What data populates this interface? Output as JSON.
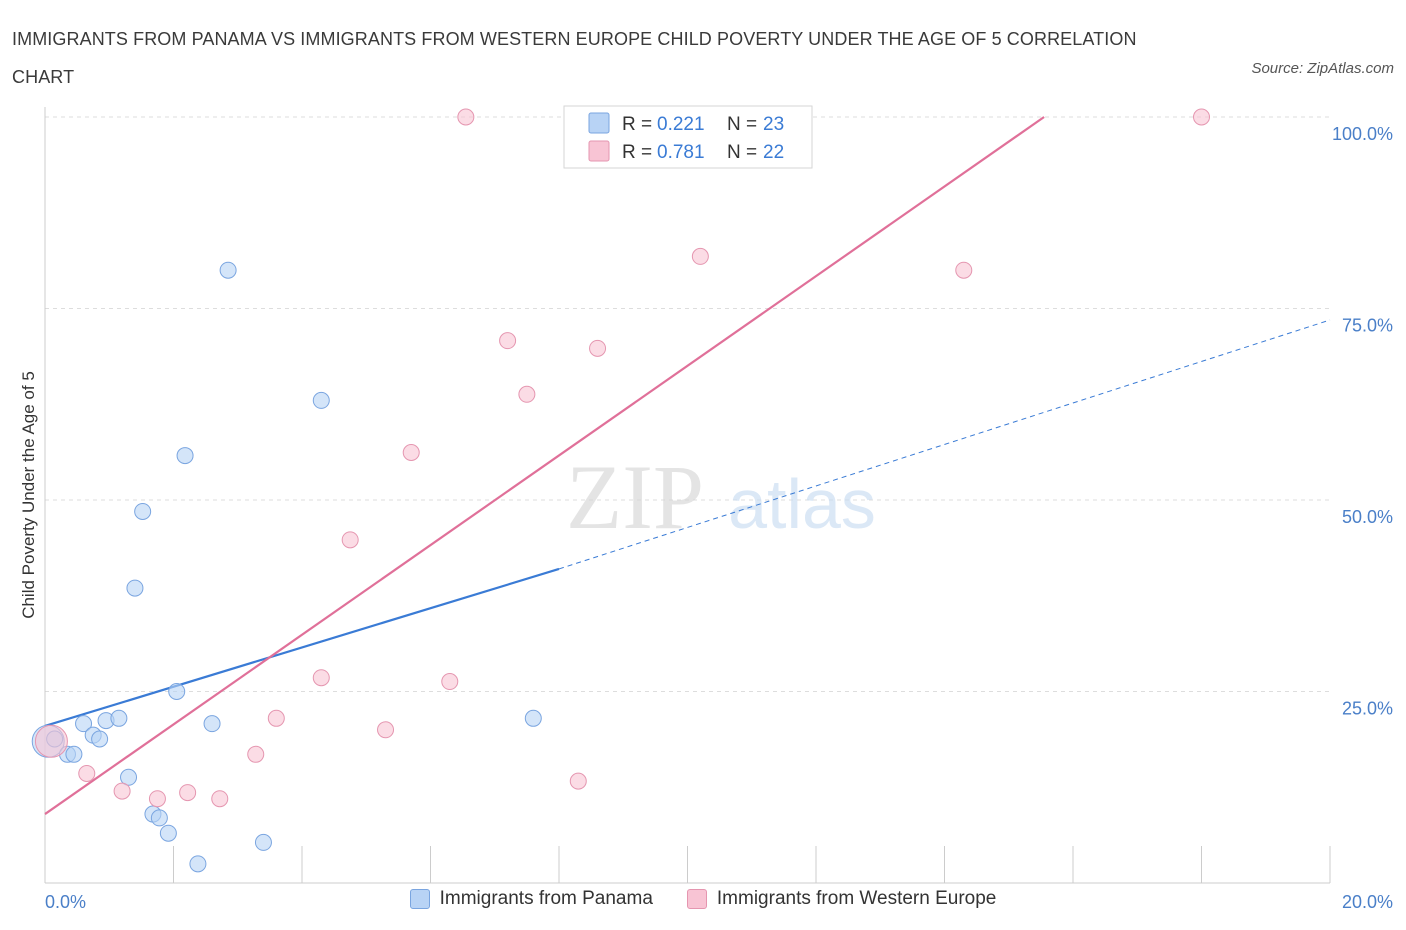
{
  "title": "IMMIGRANTS FROM PANAMA VS IMMIGRANTS FROM WESTERN EUROPE CHILD POVERTY UNDER THE AGE OF 5 CORRELATION CHART",
  "source": "Source: ZipAtlas.com",
  "watermark": {
    "zip": "ZIP",
    "atlas": "atlas"
  },
  "colors": {
    "panama": "#3a7bd5",
    "western_europe": "#e07099",
    "panama_fill": "#b8d3f5",
    "western_europe_fill": "#f8c4d4",
    "axis_label": "#4a7fc8"
  },
  "legend_top": [
    {
      "r_label": "R =",
      "r_value": "0.221",
      "n_label": "N =",
      "n_value": "23"
    },
    {
      "r_label": "R =",
      "r_value": "0.781",
      "n_label": "N =",
      "n_value": "22"
    }
  ],
  "legend_bottom": [
    "Immigrants from Panama",
    "Immigrants from Western Europe"
  ],
  "chart_data": {
    "type": "scatter",
    "title": "IMMIGRANTS FROM PANAMA VS IMMIGRANTS FROM WESTERN EUROPE CHILD POVERTY UNDER THE AGE OF 5 CORRELATION CHART",
    "xlabel": "",
    "ylabel": "Child Poverty Under the Age of 5",
    "xlim": [
      0,
      20
    ],
    "ylim": [
      0,
      100
    ],
    "x_tick_labels": [
      "0.0%",
      "20.0%"
    ],
    "y_tick_labels": [
      "100.0%",
      "75.0%",
      "50.0%",
      "25.0%"
    ],
    "y_ticks": [
      100,
      75,
      50,
      25
    ],
    "grid": true,
    "legend_position": "top-center",
    "series": [
      {
        "name": "Immigrants from Panama",
        "r": 0.221,
        "n": 23,
        "points": [
          {
            "x": 0.05,
            "y": 18.5,
            "big": true
          },
          {
            "x": 0.15,
            "y": 18.8
          },
          {
            "x": 0.35,
            "y": 16.8
          },
          {
            "x": 0.45,
            "y": 16.8
          },
          {
            "x": 0.6,
            "y": 20.8
          },
          {
            "x": 0.75,
            "y": 19.3
          },
          {
            "x": 0.85,
            "y": 18.8
          },
          {
            "x": 0.95,
            "y": 21.2
          },
          {
            "x": 1.15,
            "y": 21.5
          },
          {
            "x": 1.3,
            "y": 13.8
          },
          {
            "x": 1.4,
            "y": 38.5
          },
          {
            "x": 1.52,
            "y": 48.5
          },
          {
            "x": 1.68,
            "y": 9.0
          },
          {
            "x": 1.78,
            "y": 8.5
          },
          {
            "x": 1.92,
            "y": 6.5
          },
          {
            "x": 2.05,
            "y": 25.0
          },
          {
            "x": 2.18,
            "y": 55.8
          },
          {
            "x": 2.38,
            "y": 2.5
          },
          {
            "x": 2.6,
            "y": 20.8
          },
          {
            "x": 2.85,
            "y": 80.0
          },
          {
            "x": 3.4,
            "y": 5.3
          },
          {
            "x": 4.3,
            "y": 63.0
          },
          {
            "x": 7.6,
            "y": 21.5
          }
        ],
        "trend": {
          "x0": 0.0,
          "y0": 20.5,
          "x1": 8.0,
          "y1": 41.0,
          "dash_to_x": 20.0,
          "dash_to_y": 73.5
        }
      },
      {
        "name": "Immigrants from Western Europe",
        "r": 0.781,
        "n": 22,
        "points": [
          {
            "x": 0.1,
            "y": 18.5,
            "big": true
          },
          {
            "x": 0.65,
            "y": 14.3
          },
          {
            "x": 1.2,
            "y": 12.0
          },
          {
            "x": 1.75,
            "y": 11.0
          },
          {
            "x": 2.22,
            "y": 11.8
          },
          {
            "x": 2.72,
            "y": 11.0
          },
          {
            "x": 3.28,
            "y": 16.8
          },
          {
            "x": 3.6,
            "y": 21.5
          },
          {
            "x": 4.3,
            "y": 26.8
          },
          {
            "x": 4.75,
            "y": 44.8
          },
          {
            "x": 5.3,
            "y": 20.0
          },
          {
            "x": 5.7,
            "y": 56.2
          },
          {
            "x": 6.3,
            "y": 26.3
          },
          {
            "x": 6.55,
            "y": 100.0
          },
          {
            "x": 7.2,
            "y": 70.8
          },
          {
            "x": 7.5,
            "y": 63.8
          },
          {
            "x": 8.3,
            "y": 13.3
          },
          {
            "x": 8.6,
            "y": 69.8
          },
          {
            "x": 9.0,
            "y": 100.0
          },
          {
            "x": 10.2,
            "y": 81.8
          },
          {
            "x": 14.3,
            "y": 80.0
          },
          {
            "x": 18.0,
            "y": 100.0
          }
        ],
        "trend": {
          "x0": 0.0,
          "y0": 9.0,
          "x1": 15.55,
          "y1": 100.0
        }
      }
    ]
  }
}
